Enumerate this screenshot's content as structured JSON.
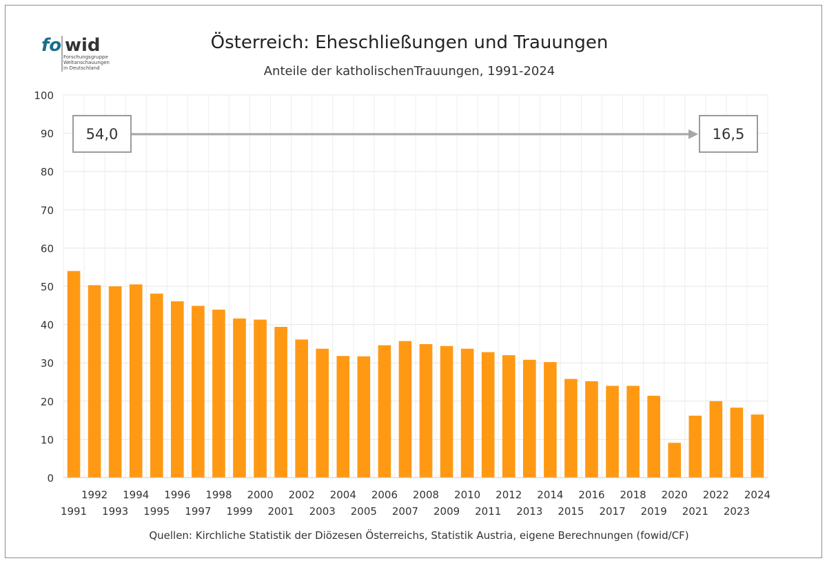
{
  "logo": {
    "text_fo": "fo",
    "text_wid": "wid",
    "line1": "Forschungsgruppe",
    "line2": "Weltanschauungen",
    "line3": "in Deutschland",
    "color_fo": "#1a6e8a",
    "color_wid": "#333333"
  },
  "chart_data": {
    "type": "bar",
    "title": "Österreich: Eheschließungen und Trauungen",
    "subtitle": "Anteile der katholischenTrauungen, 1991-2024",
    "source": "Quellen: Kirchliche Statistik der Diözesen Österreichs, Statistik Austria, eigene Berechnungen (fowid/CF)",
    "categories": [
      "1991",
      "1992",
      "1993",
      "1994",
      "1995",
      "1996",
      "1997",
      "1998",
      "1999",
      "2000",
      "2001",
      "2002",
      "2003",
      "2004",
      "2005",
      "2006",
      "2007",
      "2008",
      "2009",
      "2010",
      "2011",
      "2012",
      "2013",
      "2014",
      "2015",
      "2016",
      "2017",
      "2018",
      "2019",
      "2020",
      "2021",
      "2022",
      "2023",
      "2024"
    ],
    "values": [
      54.0,
      50.3,
      50.0,
      50.5,
      48.1,
      46.1,
      44.9,
      43.9,
      41.6,
      41.3,
      39.4,
      36.1,
      33.7,
      31.8,
      31.7,
      34.6,
      35.7,
      34.9,
      34.4,
      33.7,
      32.8,
      32.0,
      30.8,
      30.2,
      25.8,
      25.2,
      24.0,
      24.0,
      21.4,
      9.1,
      16.2,
      20.0,
      18.3,
      16.5
    ],
    "ylim": [
      0,
      100
    ],
    "yticks": [
      "0",
      "10",
      "20",
      "30",
      "40",
      "50",
      "60",
      "70",
      "80",
      "90",
      "100"
    ],
    "grid": true,
    "bar_color": "#ff9914",
    "annotation_start": "54,0",
    "annotation_end": "16,5",
    "arrow_color": "#a6a6a6"
  }
}
